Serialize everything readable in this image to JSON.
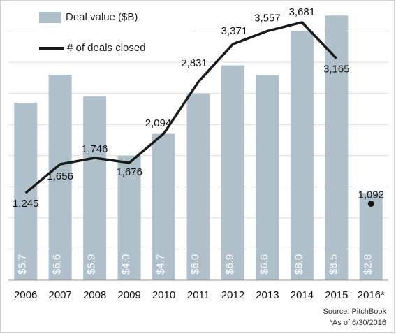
{
  "chart_data": {
    "type": "bar",
    "categories": [
      "2006",
      "2007",
      "2008",
      "2009",
      "2010",
      "2011",
      "2012",
      "2013",
      "2014",
      "2015",
      "2016*"
    ],
    "series": [
      {
        "name": "Deal value ($B)",
        "type": "bar",
        "values": [
          5.7,
          6.6,
          5.9,
          4.0,
          4.7,
          6.0,
          6.9,
          6.6,
          8.0,
          8.5,
          2.8
        ],
        "labels": [
          "$5.7",
          "$6.6",
          "$5.9",
          "$4.0",
          "$4.7",
          "$6.0",
          "$6.9",
          "$6.6",
          "$8.0",
          "$8.5",
          "$2.8"
        ]
      },
      {
        "name": "# of deals closed",
        "type": "line",
        "values": [
          1245,
          1656,
          1746,
          1676,
          2094,
          2831,
          3371,
          3557,
          3681,
          3165,
          1092
        ],
        "labels": [
          "1,245",
          "1,656",
          "1,746",
          "1,676",
          "2,094",
          "2,831",
          "3,371",
          "3,557",
          "3,681",
          "3,165",
          "1,092"
        ]
      }
    ],
    "grid": true,
    "legend": "top-left",
    "ylim_bars": [
      0,
      9
    ],
    "ylim_line": [
      0,
      4000
    ]
  },
  "colors": {
    "bar": "#b0c0cb",
    "line": "#1a1a1a",
    "grid": "#d9d9d9",
    "bar_label": "#ffffff"
  },
  "footnote": {
    "source": "Source: PitchBook",
    "asof": "*As of 6/30/2016"
  }
}
